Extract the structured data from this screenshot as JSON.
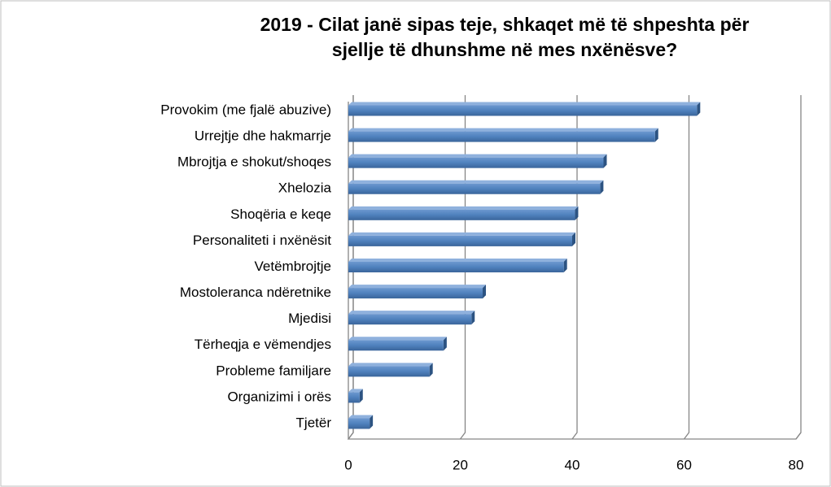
{
  "chart_data": {
    "type": "bar",
    "orientation": "horizontal",
    "title": [
      "2019 - Cilat janë sipas teje, shkaqet më të shpeshta për",
      "sjellje të dhunshme në mes nxënësve?"
    ],
    "categories": [
      "Provokim (me fjalë abuzive)",
      "Urrejtje dhe hakmarrje",
      "Mbrojtja e shokut/shoqes",
      "Xhelozia",
      "Shoqëria e keqe",
      "Personaliteti i nxënësit",
      "Vetëmbrojtje",
      "Mostoleranca ndëretnike",
      "Mjedisi",
      "Tërheqja e vëmendjes",
      "Probleme familjare",
      "Organizimi i orës",
      "Tjetër"
    ],
    "values": [
      62.3,
      54.8,
      45.6,
      45,
      40.5,
      40,
      38.5,
      24,
      22,
      17,
      14.5,
      2,
      3.8
    ],
    "color": "#4f81bd",
    "xlim": [
      0,
      80
    ],
    "xticks": [
      0,
      20,
      40,
      60,
      80
    ],
    "grid": true
  }
}
